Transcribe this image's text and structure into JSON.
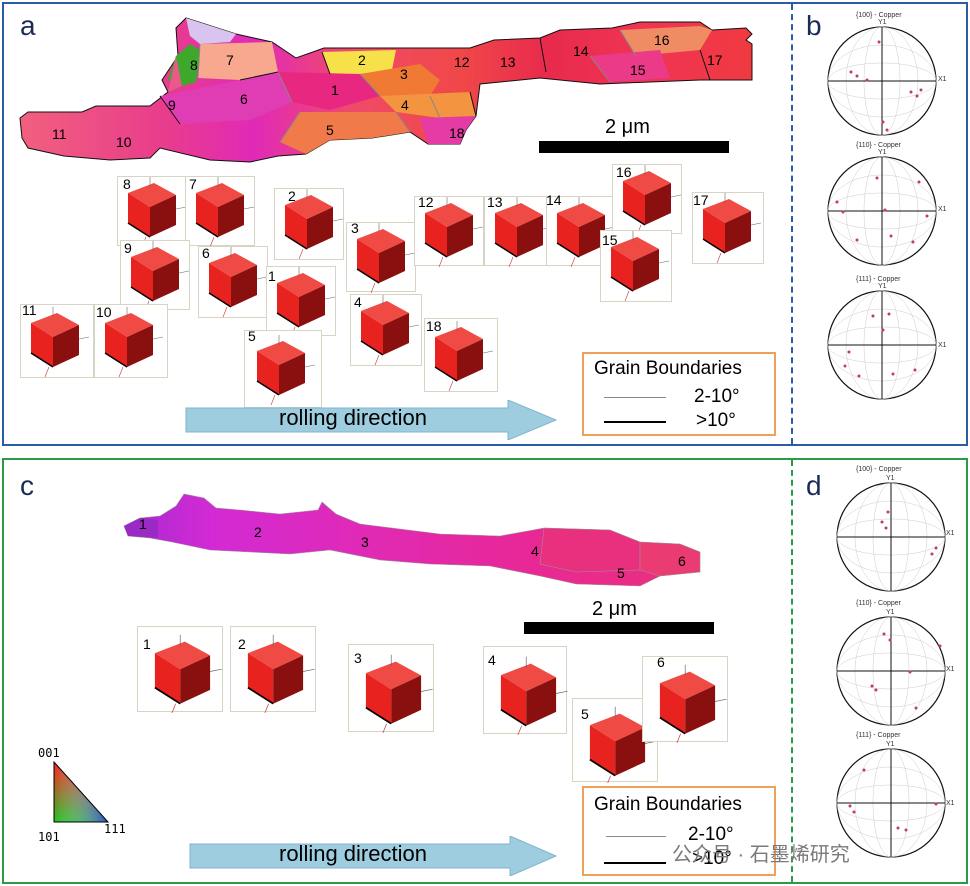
{
  "panels": {
    "a": "a",
    "b": "b",
    "c": "c",
    "d": "d"
  },
  "colors": {
    "frame_top": "#2a5ca8",
    "frame_bottom": "#2b9b47",
    "dash_top": "#2a5ca8",
    "dash_bottom": "#2b9b47",
    "cube": "#e8231f",
    "arrow": "#9fcde0",
    "legend_border": "#f0a05a"
  },
  "top": {
    "grain_labels": [
      "1",
      "2",
      "3",
      "4",
      "5",
      "6",
      "7",
      "8",
      "9",
      "10",
      "11",
      "12",
      "13",
      "14",
      "15",
      "16",
      "17",
      "18"
    ],
    "cube_labels": [
      "8",
      "7",
      "2",
      "3",
      "12",
      "13",
      "14",
      "16",
      "15",
      "17",
      "9",
      "6",
      "1",
      "11",
      "10",
      "4",
      "18",
      "5"
    ],
    "scale_bar_text": "2 μm",
    "legend": {
      "title": "Grain Boundaries",
      "low": "2-10°",
      "high": ">10°"
    },
    "arrow_text": "rolling direction"
  },
  "bottom": {
    "grain_labels": [
      "1",
      "2",
      "3",
      "4",
      "5",
      "6"
    ],
    "cube_labels": [
      "1",
      "2",
      "3",
      "4",
      "5",
      "6"
    ],
    "scale_bar_text": "2 μm",
    "legend": {
      "title": "Grain Boundaries",
      "low": "2-10°",
      "high": ">10°"
    },
    "arrow_text": "rolling direction",
    "triangle": {
      "top": "001",
      "left": "101",
      "right": "111"
    }
  },
  "pole_figures": {
    "titles": [
      "{100} - Copper",
      "{110} - Copper",
      "{111} - Copper"
    ],
    "y_axis": "Y1",
    "x_axis": "X1"
  },
  "watermark": "公众号 · 石墨烯研究"
}
